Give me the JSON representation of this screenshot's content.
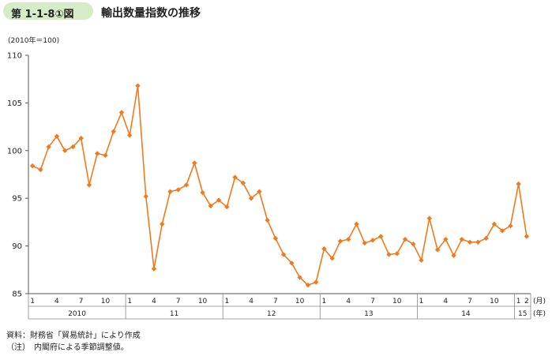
{
  "header": {
    "figure_label": "第 1-1-8①図",
    "title": "輸出数量指数の推移",
    "badge_color": "#d6ecc6"
  },
  "chart_data": {
    "type": "line",
    "title": "輸出数量指数の推移",
    "base_note": "(2010年＝100)",
    "ylim": [
      85,
      110
    ],
    "yticks": [
      "85",
      "90",
      "95",
      "100",
      "105",
      "110"
    ],
    "color": "#f07a1e",
    "month_unit": "(月)",
    "year_unit": "(年)",
    "months": [
      "1",
      "",
      "",
      "4",
      "",
      "",
      "7",
      "",
      "",
      "10",
      "",
      "",
      "1",
      "",
      "",
      "4",
      "",
      "",
      "7",
      "",
      "",
      "10",
      "",
      "",
      "1",
      "",
      "",
      "4",
      "",
      "",
      "7",
      "",
      "",
      "10",
      "",
      "",
      "1",
      "",
      "",
      "4",
      "",
      "",
      "7",
      "",
      "",
      "10",
      "",
      "",
      "1",
      "",
      "",
      "4",
      "",
      "",
      "7",
      "",
      "",
      "10",
      "",
      "",
      "1",
      "2"
    ],
    "years": [
      {
        "label": "2010",
        "start": 0,
        "span": 12
      },
      {
        "label": "11",
        "start": 12,
        "span": 12
      },
      {
        "label": "12",
        "start": 24,
        "span": 12
      },
      {
        "label": "13",
        "start": 36,
        "span": 12
      },
      {
        "label": "14",
        "start": 48,
        "span": 12
      },
      {
        "label": "15",
        "start": 60,
        "span": 2
      }
    ],
    "values": [
      98.4,
      98.0,
      100.4,
      101.5,
      100.0,
      100.4,
      101.3,
      96.4,
      99.7,
      99.5,
      102.0,
      104.0,
      101.6,
      106.8,
      95.2,
      87.6,
      92.3,
      95.7,
      95.9,
      96.4,
      98.7,
      95.6,
      94.2,
      94.8,
      94.1,
      97.2,
      96.6,
      95.0,
      95.7,
      92.7,
      90.8,
      89.1,
      88.2,
      86.7,
      85.9,
      86.2,
      89.7,
      88.7,
      90.5,
      90.7,
      92.3,
      90.3,
      90.6,
      91.0,
      89.1,
      89.2,
      90.7,
      90.2,
      88.5,
      92.9,
      89.6,
      90.7,
      89.0,
      90.7,
      90.4,
      90.4,
      90.8,
      92.3,
      91.6,
      92.1,
      96.5,
      91.0
    ]
  },
  "notes": {
    "source": "資料：財務省「貿易統計」により作成",
    "remark": "（注）　内閣府による季節調整値。"
  }
}
